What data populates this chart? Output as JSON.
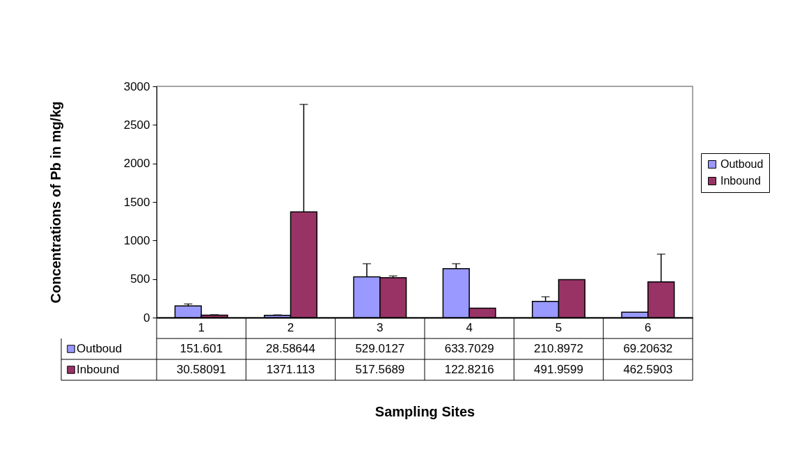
{
  "chart_data": {
    "type": "bar",
    "xlabel": "Sampling Sites",
    "ylabel": "Concentrations of Pb in mg/kg",
    "categories": [
      "1",
      "2",
      "3",
      "4",
      "5",
      "6"
    ],
    "series": [
      {
        "name": "Outboud",
        "color": "#9999ff",
        "values": [
          151.601,
          28.58644,
          529.0127,
          633.7029,
          210.8972,
          69.20632
        ],
        "errors": [
          [
            151.601,
            177
          ],
          [
            28.58644,
            35
          ],
          [
            529.0127,
            699
          ],
          [
            633.7029,
            699
          ],
          [
            210.8972,
            270
          ],
          null
        ]
      },
      {
        "name": "Inbound",
        "color": "#993366",
        "values": [
          30.58091,
          1371.113,
          517.5689,
          122.8216,
          491.9599,
          462.5903
        ],
        "errors": [
          [
            30.58091,
            37
          ],
          [
            1371.113,
            2766
          ],
          [
            517.5689,
            540
          ],
          null,
          null,
          [
            462.5903,
            823
          ]
        ]
      }
    ],
    "ylim": [
      0,
      3000
    ],
    "yticks": [
      0,
      500,
      1000,
      1500,
      2000,
      2500,
      3000
    ],
    "grid": false,
    "legend": "right",
    "data_labels": true
  }
}
